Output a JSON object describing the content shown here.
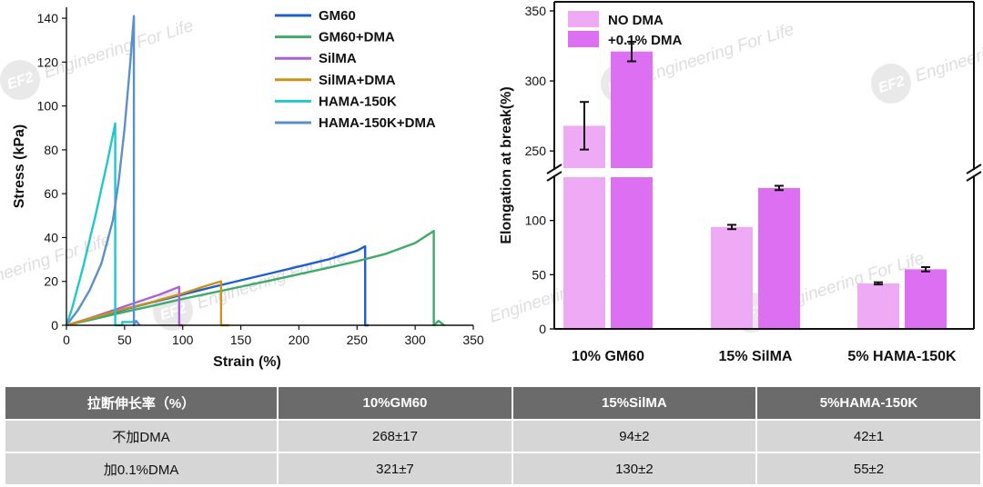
{
  "chart_data": [
    {
      "type": "line",
      "title": "",
      "xlabel": "Strain (%)",
      "ylabel": "Stress (kPa)",
      "xlim": [
        0,
        350
      ],
      "ylim": [
        0,
        145
      ],
      "xticks": [
        "0",
        "50",
        "100",
        "150",
        "200",
        "250",
        "300",
        "350"
      ],
      "yticks": [
        "0",
        "20",
        "40",
        "60",
        "80",
        "100",
        "120",
        "140"
      ],
      "grid": false,
      "legend_position": "top-right",
      "series": [
        {
          "name": "GM60",
          "color": "#1f5fd1",
          "x": [
            0,
            25,
            50,
            75,
            100,
            125,
            150,
            175,
            200,
            225,
            250,
            257,
            257,
            260
          ],
          "y": [
            0,
            3.5,
            7.2,
            10.6,
            14,
            17.3,
            20.5,
            23.6,
            26.8,
            30,
            34,
            36,
            0,
            0
          ]
        },
        {
          "name": "GM60+DMA",
          "color": "#3faa6a",
          "x": [
            0,
            25,
            50,
            75,
            100,
            125,
            150,
            175,
            200,
            225,
            250,
            275,
            300,
            316,
            316,
            320,
            325
          ],
          "y": [
            0,
            3,
            6.1,
            9,
            12,
            14.8,
            17.6,
            20.4,
            23.3,
            26.2,
            29.2,
            32.6,
            37.5,
            43,
            0,
            2,
            0
          ]
        },
        {
          "name": "SilMA",
          "color": "#a862d8",
          "x": [
            0,
            20,
            40,
            60,
            80,
            97,
            97,
            100
          ],
          "y": [
            0,
            3.2,
            6.8,
            10.4,
            14,
            17.5,
            0,
            0
          ]
        },
        {
          "name": "SilMA+DMA",
          "color": "#c9921a",
          "x": [
            0,
            25,
            50,
            75,
            100,
            120,
            133,
            133,
            140
          ],
          "y": [
            0,
            3.8,
            7.5,
            10.8,
            14.5,
            18,
            20,
            0,
            0
          ]
        },
        {
          "name": "HAMA-150K",
          "color": "#22c8c8",
          "x": [
            0,
            5,
            10,
            15,
            20,
            25,
            30,
            35,
            40,
            42,
            42,
            48,
            48,
            60
          ],
          "y": [
            0,
            8,
            18,
            28,
            39,
            50,
            62,
            74,
            87,
            92,
            0,
            0,
            1.5,
            1.5
          ]
        },
        {
          "name": "HAMA-150K+DMA",
          "color": "#5d8fc8",
          "x": [
            0,
            10,
            20,
            30,
            40,
            45,
            50,
            55,
            58,
            58,
            60,
            63
          ],
          "y": [
            0,
            7,
            16,
            28,
            48,
            66,
            90,
            120,
            141,
            0,
            2,
            0
          ]
        }
      ]
    },
    {
      "type": "bar",
      "title": "",
      "xlabel": "",
      "ylabel": "Elongation at break(%)",
      "categories": [
        "10% GM60",
        "15% SilMA",
        "5% HAMA-150K"
      ],
      "axis_break": [
        150,
        230
      ],
      "ylim": [
        0,
        350
      ],
      "yticks": [
        "0",
        "50",
        "100",
        "250",
        "300",
        "350"
      ],
      "legend_position": "top-left",
      "series": [
        {
          "name": "NO DMA",
          "color": "#eeaaf5",
          "values": [
            268,
            94,
            42
          ],
          "errors": [
            17,
            2,
            1
          ]
        },
        {
          "name": "+0.1% DMA",
          "color": "#dc6ff2",
          "values": [
            321,
            130,
            55
          ],
          "errors": [
            7,
            2,
            2
          ]
        }
      ]
    }
  ],
  "watermark": {
    "logo": "EF2",
    "text": "Engineering For Life"
  },
  "table": {
    "headers": [
      "拉断伸长率（%）",
      "10%GM60",
      "15%SilMA",
      "5%HAMA-150K"
    ],
    "rows": [
      [
        "不加DMA",
        "268±17",
        "94±2",
        "42±1"
      ],
      [
        "加0.1%DMA",
        "321±7",
        "130±2",
        "55±2"
      ]
    ]
  }
}
